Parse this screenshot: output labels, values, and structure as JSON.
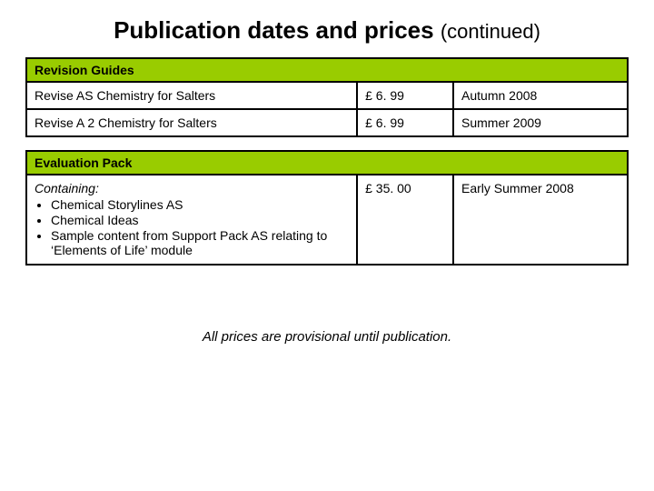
{
  "title": {
    "main": "Publication dates and prices",
    "suffix": "(continued)"
  },
  "colors": {
    "header_bg": "#99cc00",
    "border": "#000000",
    "text": "#000000",
    "background": "#ffffff"
  },
  "column_widths": {
    "name": "55%",
    "price": "16%",
    "date": "29%"
  },
  "fonts": {
    "title_size": 26,
    "suffix_size": 22,
    "table_size": 14,
    "footer_size": 15
  },
  "tables": [
    {
      "header": "Revision Guides",
      "rows": [
        {
          "name": "Revise AS Chemistry for Salters",
          "price": "£ 6. 99",
          "date": "Autumn 2008"
        },
        {
          "name": "Revise A 2 Chemistry for Salters",
          "price": "£ 6. 99",
          "date": "Summer 2009"
        }
      ]
    },
    {
      "header": "Evaluation Pack",
      "rows": [
        {
          "intro": "Containing:",
          "items": [
            "Chemical Storylines AS",
            "Chemical Ideas",
            "Sample content from Support Pack AS relating to ‘Elements of Life’ module"
          ],
          "price": "£ 35. 00",
          "date": "Early Summer 2008"
        }
      ]
    }
  ],
  "footer": "All prices are provisional until publication."
}
